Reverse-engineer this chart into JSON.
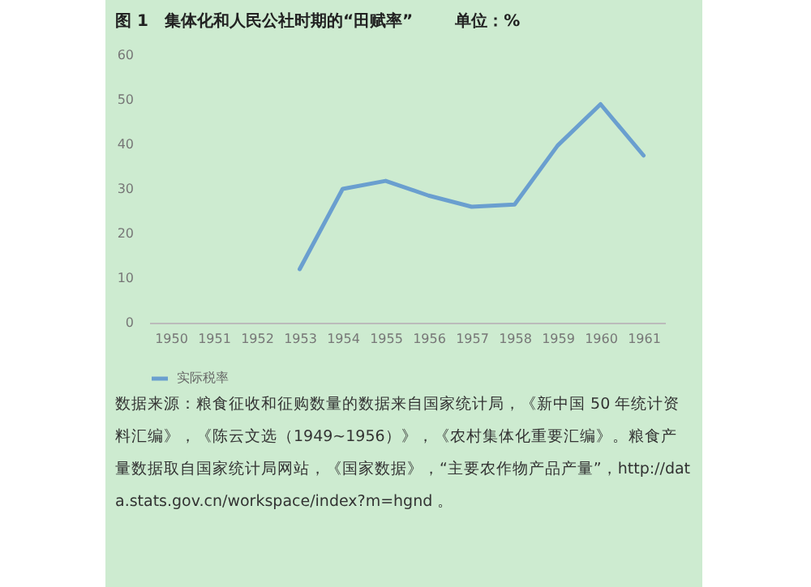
{
  "chart_data": {
    "type": "line",
    "title": "图 1　集体化和人民公社时期的“田赋率”",
    "subtitle": "单位：%",
    "categories": [
      "1950",
      "1951",
      "1952",
      "1953",
      "1954",
      "1955",
      "1956",
      "1957",
      "1958",
      "1959",
      "1960",
      "1961"
    ],
    "series": [
      {
        "name": "实际税率",
        "color": "#6a9fcf",
        "values": [
          null,
          null,
          null,
          12,
          30,
          31.8,
          28.5,
          26,
          26.5,
          39.7,
          49,
          37.5
        ]
      }
    ],
    "ylim": [
      0,
      60
    ],
    "yticks": [
      0,
      10,
      20,
      30,
      40,
      50,
      60
    ],
    "grid": false,
    "legend": "bottom",
    "marker": "none",
    "annotations": [
      "数据来源：粮食征收和征购数量的数据来自国家统计局，《新中国 50 年统计资料汇编》，《陈云文选（1949~1956）》，《农村集体化重要汇编》。粮食产量数据取自国家统计局网站，《国家数据》，“主要农作物产品产量”，http://data.stats.gov.cn/workspace/index?m=hgnd 。"
    ]
  }
}
